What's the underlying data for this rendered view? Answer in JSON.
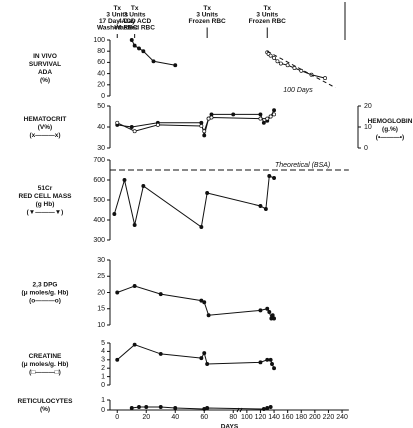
{
  "chart_data": [
    {
      "type": "line",
      "ylabel": [
        "IN VIVO",
        "SURVIVAL",
        "ADA",
        "(%)"
      ],
      "ylim": [
        0,
        100
      ],
      "yticks": [
        0,
        20,
        40,
        60,
        80,
        100
      ],
      "annotations": [
        {
          "x": 0,
          "text": [
            "Tx",
            "3 Units",
            "17 Day ACD",
            "Washed RBC"
          ]
        },
        {
          "x": 12,
          "text": [
            "Tx",
            "3 Units",
            "4 Day ACD",
            "Washed RBC"
          ]
        },
        {
          "x": 62,
          "text": [
            "Tx",
            "3 Units",
            "Frozen RBC"
          ]
        },
        {
          "x": 130,
          "text": [
            "Tx",
            "3 Units",
            "Frozen RBC"
          ]
        }
      ],
      "span_label": "100 Days",
      "series": [
        {
          "color": "#111",
          "x": [
            10,
            12,
            15,
            18,
            25,
            40
          ],
          "values": [
            100,
            90,
            85,
            80,
            62,
            55
          ]
        },
        {
          "color": "#111",
          "x": [
            130,
            132,
            135,
            140,
            145,
            150,
            160,
            170,
            180,
            195,
            215
          ],
          "values": [
            78,
            75,
            72,
            68,
            62,
            58,
            55,
            50,
            45,
            38,
            32
          ]
        },
        {
          "color": "#111",
          "dashed": true,
          "x": [
            130,
            230
          ],
          "values": [
            80,
            15
          ]
        }
      ]
    },
    {
      "type": "line",
      "ylabel": [
        "HEMATOCRIT",
        "(V%)",
        "(x———x)"
      ],
      "y2label": [
        "HEMOGLOBIN",
        "(g.%)",
        "(•———•)"
      ],
      "ylim": [
        30,
        50
      ],
      "yticks": [
        30,
        40,
        50
      ],
      "y2lim": [
        0,
        20
      ],
      "y2ticks": [
        0,
        10,
        20
      ],
      "series": [
        {
          "color": "#111",
          "x": [
            0,
            10,
            28,
            58,
            60,
            63,
            65,
            80,
            120,
            125,
            130,
            135,
            140
          ],
          "values": [
            41,
            40,
            42,
            42,
            36,
            44,
            46,
            46,
            46,
            42,
            43,
            45,
            48
          ]
        },
        {
          "color": "#111",
          "axis": "y2",
          "x": [
            0,
            12,
            28,
            58,
            60,
            63,
            65,
            120,
            130,
            135,
            140
          ],
          "values": [
            12,
            8,
            11,
            10.5,
            8,
            14,
            14.5,
            14,
            14,
            15,
            16
          ]
        }
      ]
    },
    {
      "type": "line",
      "ylabel": [
        "51Cr",
        "RED  CELL MASS",
        "(g Hb)",
        "(▼———▼)"
      ],
      "ylim": [
        300,
        700
      ],
      "yticks": [
        300,
        400,
        500,
        600,
        700
      ],
      "reference": {
        "value": 650,
        "label": "Theoretical (BSA)"
      },
      "series": [
        {
          "color": "#111",
          "x": [
            -2,
            5,
            12,
            18,
            58,
            62,
            120,
            128,
            133,
            140
          ],
          "values": [
            430,
            600,
            375,
            570,
            365,
            535,
            470,
            455,
            620,
            610
          ]
        }
      ]
    },
    {
      "type": "line",
      "ylabel": [
        "2,3 DPG",
        "(μ moles/g. Hb)",
        "(o———o)"
      ],
      "ylim": [
        10,
        30
      ],
      "yticks": [
        10,
        15,
        20,
        25,
        30
      ],
      "series": [
        {
          "color": "#111",
          "x": [
            0,
            12,
            30,
            58,
            60,
            63,
            120,
            130,
            133,
            136,
            138,
            140
          ],
          "values": [
            20,
            22,
            19.5,
            17.5,
            17,
            13,
            14.5,
            15,
            14,
            12,
            13,
            12
          ]
        }
      ]
    },
    {
      "type": "line",
      "ylabel": [
        "CREATINE",
        "(μ moles/g. Hb)",
        "(□———□)"
      ],
      "ylim": [
        0,
        5
      ],
      "yticks": [
        0,
        1,
        2,
        3,
        4,
        5
      ],
      "series": [
        {
          "color": "#111",
          "x": [
            0,
            12,
            30,
            58,
            60,
            62,
            120,
            130,
            135,
            137,
            140
          ],
          "values": [
            3,
            4.8,
            3.7,
            3.2,
            3.8,
            2.5,
            2.7,
            3,
            3,
            2.5,
            2
          ]
        }
      ]
    },
    {
      "type": "line",
      "ylabel": [
        "RETICULOCYTES",
        "(%)"
      ],
      "ylim": [
        0,
        1
      ],
      "yticks": [
        0,
        1
      ],
      "xlabel": "DAYS",
      "xlim": [
        -5,
        250
      ],
      "xticks": [
        0,
        20,
        40,
        60,
        80,
        100,
        120,
        140,
        160,
        180,
        200,
        220,
        240
      ],
      "series": [
        {
          "color": "#111",
          "x": [
            10,
            15,
            20,
            30,
            40,
            60,
            62,
            125,
            130,
            135
          ],
          "values": [
            0.2,
            0.3,
            0.3,
            0.3,
            0.2,
            0.1,
            0.2,
            0.1,
            0.2,
            0.3
          ]
        }
      ]
    }
  ]
}
